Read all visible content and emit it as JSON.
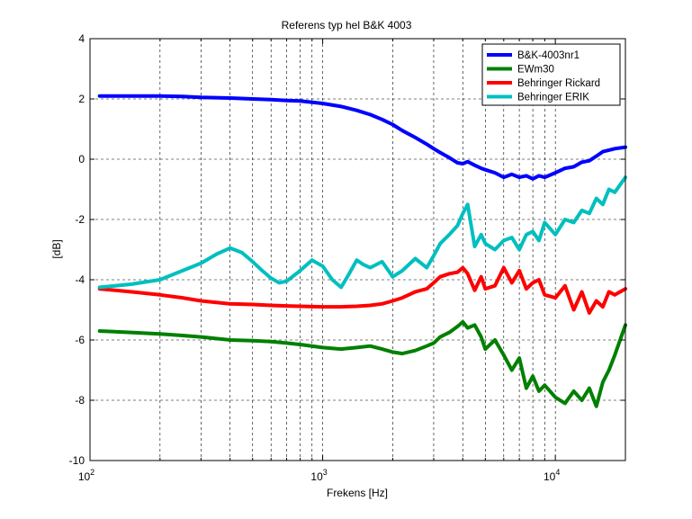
{
  "chart_data": {
    "type": "line",
    "title": "Referens typ hel B&K 4003",
    "xlabel": "Frekens [Hz]",
    "ylabel": "[dB]",
    "xscale": "log",
    "xlim": [
      100,
      20000
    ],
    "ylim": [
      -10,
      4
    ],
    "grid": true,
    "legend_position": "top-right",
    "yticks": [
      {
        "value": 4,
        "label": "4"
      },
      {
        "value": 2,
        "label": "2"
      },
      {
        "value": 0,
        "label": "0"
      },
      {
        "value": -2,
        "label": "-2"
      },
      {
        "value": -4,
        "label": "-4"
      },
      {
        "value": -6,
        "label": "-6"
      },
      {
        "value": -8,
        "label": "-8"
      },
      {
        "value": -10,
        "label": "-10"
      }
    ],
    "xticks": [
      {
        "value": 100,
        "base": "10",
        "exp": "2"
      },
      {
        "value": 1000,
        "base": "10",
        "exp": "3"
      },
      {
        "value": 10000,
        "base": "10",
        "exp": "4"
      }
    ],
    "series": [
      {
        "name": "B&K-4003nr1",
        "color": "#0000ff",
        "x": [
          110,
          150,
          200,
          250,
          300,
          400,
          500,
          600,
          700,
          800,
          1000,
          1200,
          1400,
          1600,
          1800,
          2000,
          2200,
          2500,
          2800,
          3000,
          3200,
          3500,
          3800,
          4000,
          4200,
          4500,
          4800,
          5000,
          5500,
          6000,
          6500,
          7000,
          7500,
          8000,
          8500,
          9000,
          10000,
          11000,
          12000,
          13000,
          14000,
          15000,
          16000,
          17000,
          18000,
          20000
        ],
        "y": [
          2.1,
          2.1,
          2.1,
          2.08,
          2.05,
          2.03,
          2.0,
          1.98,
          1.95,
          1.93,
          1.85,
          1.75,
          1.62,
          1.48,
          1.32,
          1.15,
          0.95,
          0.72,
          0.5,
          0.35,
          0.22,
          0.05,
          -0.12,
          -0.15,
          -0.08,
          -0.2,
          -0.3,
          -0.35,
          -0.45,
          -0.6,
          -0.5,
          -0.6,
          -0.55,
          -0.65,
          -0.55,
          -0.6,
          -0.45,
          -0.3,
          -0.25,
          -0.1,
          -0.05,
          0.1,
          0.25,
          0.3,
          0.35,
          0.4
        ]
      },
      {
        "name": "EWm30",
        "color": "#008000",
        "x": [
          110,
          150,
          200,
          250,
          300,
          400,
          500,
          600,
          700,
          800,
          1000,
          1200,
          1400,
          1600,
          1800,
          2000,
          2200,
          2500,
          2800,
          3000,
          3200,
          3500,
          3800,
          4000,
          4200,
          4500,
          4800,
          5000,
          5500,
          6000,
          6500,
          7000,
          7500,
          8000,
          8500,
          9000,
          10000,
          11000,
          12000,
          13000,
          14000,
          15000,
          16000,
          17000,
          18000,
          20000
        ],
        "y": [
          -5.7,
          -5.75,
          -5.8,
          -5.85,
          -5.9,
          -6.0,
          -6.02,
          -6.05,
          -6.1,
          -6.15,
          -6.25,
          -6.3,
          -6.25,
          -6.2,
          -6.3,
          -6.4,
          -6.45,
          -6.35,
          -6.2,
          -6.1,
          -5.9,
          -5.75,
          -5.55,
          -5.4,
          -5.6,
          -5.5,
          -5.9,
          -6.3,
          -6.0,
          -6.5,
          -7.0,
          -6.6,
          -7.6,
          -7.2,
          -7.7,
          -7.5,
          -7.9,
          -8.1,
          -7.7,
          -8.0,
          -7.6,
          -8.2,
          -7.4,
          -7.0,
          -6.5,
          -5.5
        ]
      },
      {
        "name": "Behringer Rickard",
        "color": "#ff0000",
        "x": [
          110,
          150,
          200,
          250,
          300,
          400,
          500,
          600,
          700,
          800,
          1000,
          1200,
          1400,
          1600,
          1800,
          2000,
          2200,
          2500,
          2800,
          3000,
          3200,
          3500,
          3800,
          4000,
          4200,
          4500,
          4800,
          5000,
          5500,
          6000,
          6500,
          7000,
          7500,
          8000,
          8500,
          9000,
          10000,
          11000,
          12000,
          13000,
          14000,
          15000,
          16000,
          17000,
          18000,
          20000
        ],
        "y": [
          -4.3,
          -4.4,
          -4.5,
          -4.6,
          -4.7,
          -4.8,
          -4.82,
          -4.85,
          -4.87,
          -4.88,
          -4.9,
          -4.9,
          -4.88,
          -4.85,
          -4.8,
          -4.7,
          -4.6,
          -4.4,
          -4.3,
          -4.1,
          -3.9,
          -3.8,
          -3.75,
          -3.6,
          -3.8,
          -4.35,
          -3.9,
          -4.3,
          -4.2,
          -3.6,
          -4.1,
          -3.7,
          -4.3,
          -4.1,
          -4.0,
          -4.5,
          -4.6,
          -4.2,
          -5.0,
          -4.4,
          -5.1,
          -4.7,
          -4.9,
          -4.4,
          -4.5,
          -4.3
        ]
      },
      {
        "name": "Behringer ERIK",
        "color": "#00bfbf",
        "x": [
          110,
          150,
          200,
          250,
          300,
          350,
          400,
          450,
          500,
          550,
          600,
          650,
          700,
          800,
          900,
          1000,
          1100,
          1200,
          1300,
          1400,
          1500,
          1600,
          1800,
          2000,
          2200,
          2500,
          2800,
          3000,
          3200,
          3500,
          3800,
          4000,
          4200,
          4500,
          4800,
          5000,
          5500,
          6000,
          6500,
          7000,
          7500,
          8000,
          8500,
          9000,
          10000,
          11000,
          12000,
          13000,
          14000,
          15000,
          16000,
          17000,
          18000,
          20000
        ],
        "y": [
          -4.25,
          -4.15,
          -4.0,
          -3.7,
          -3.45,
          -3.15,
          -2.95,
          -3.1,
          -3.4,
          -3.7,
          -3.95,
          -4.1,
          -4.05,
          -3.7,
          -3.35,
          -3.55,
          -4.0,
          -4.25,
          -3.8,
          -3.35,
          -3.5,
          -3.6,
          -3.4,
          -3.9,
          -3.7,
          -3.3,
          -3.6,
          -3.2,
          -2.8,
          -2.5,
          -2.2,
          -1.8,
          -1.5,
          -2.9,
          -2.5,
          -2.8,
          -3.0,
          -2.7,
          -2.6,
          -3.0,
          -2.5,
          -2.4,
          -2.7,
          -2.1,
          -2.5,
          -2.0,
          -2.1,
          -1.7,
          -1.8,
          -1.3,
          -1.5,
          -1.0,
          -1.1,
          -0.6
        ]
      }
    ]
  }
}
